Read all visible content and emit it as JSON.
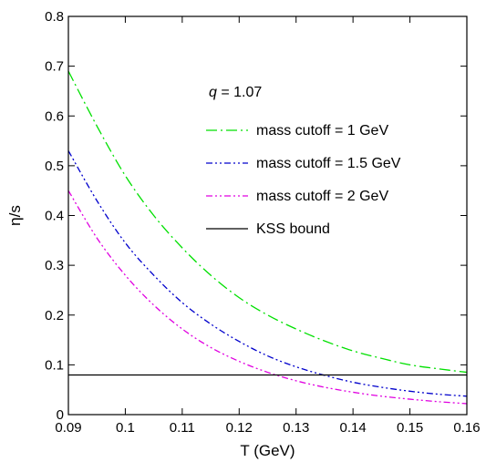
{
  "chart_data": {
    "type": "line",
    "xlabel": "T (GeV)",
    "ylabel": "η/s",
    "xlim": [
      0.09,
      0.16
    ],
    "ylim": [
      0,
      0.8
    ],
    "x_ticks": [
      0.09,
      0.1,
      0.11,
      0.12,
      0.13,
      0.14,
      0.15,
      0.16
    ],
    "x_tick_labels": [
      "0.09",
      "0.1",
      "0.11",
      "0.12",
      "0.13",
      "0.14",
      "0.15",
      "0.16"
    ],
    "y_ticks": [
      0,
      0.1,
      0.2,
      0.3,
      0.4,
      0.5,
      0.6,
      0.7,
      0.8
    ],
    "y_tick_labels": [
      "0",
      "0.1",
      "0.2",
      "0.3",
      "0.4",
      "0.5",
      "0.6",
      "0.7",
      "0.8"
    ],
    "grid": false,
    "legend_position": "top-right",
    "annotation": {
      "var": "q",
      "text": " = 1.07"
    },
    "series": [
      {
        "name": "mass cutoff = 1 GeV",
        "color": "#00e000",
        "dash": "dash-dot",
        "x": [
          0.09,
          0.095,
          0.1,
          0.105,
          0.11,
          0.115,
          0.12,
          0.125,
          0.13,
          0.135,
          0.14,
          0.145,
          0.15,
          0.155,
          0.16
        ],
        "y": [
          0.69,
          0.58,
          0.48,
          0.4,
          0.335,
          0.28,
          0.235,
          0.2,
          0.172,
          0.148,
          0.128,
          0.113,
          0.1,
          0.092,
          0.085
        ]
      },
      {
        "name": "mass cutoff = 1.5 GeV",
        "color": "#0000cc",
        "dash": "dash-dot-dot",
        "x": [
          0.09,
          0.095,
          0.1,
          0.105,
          0.11,
          0.115,
          0.12,
          0.125,
          0.13,
          0.135,
          0.14,
          0.145,
          0.15,
          0.155,
          0.16
        ],
        "y": [
          0.53,
          0.43,
          0.345,
          0.28,
          0.225,
          0.182,
          0.147,
          0.118,
          0.096,
          0.079,
          0.065,
          0.055,
          0.047,
          0.041,
          0.037
        ]
      },
      {
        "name": "mass cutoff = 2 GeV",
        "color": "#e000e0",
        "dash": "dash-dot-dot",
        "x": [
          0.09,
          0.095,
          0.1,
          0.105,
          0.11,
          0.115,
          0.12,
          0.125,
          0.13,
          0.135,
          0.14,
          0.145,
          0.15,
          0.155,
          0.16
        ],
        "y": [
          0.45,
          0.355,
          0.28,
          0.22,
          0.172,
          0.135,
          0.107,
          0.085,
          0.068,
          0.055,
          0.045,
          0.037,
          0.031,
          0.026,
          0.022
        ]
      },
      {
        "name": "KSS bound",
        "color": "#000000",
        "dash": "solid",
        "x": [
          0.09,
          0.16
        ],
        "y": [
          0.0796,
          0.0796
        ]
      }
    ]
  }
}
